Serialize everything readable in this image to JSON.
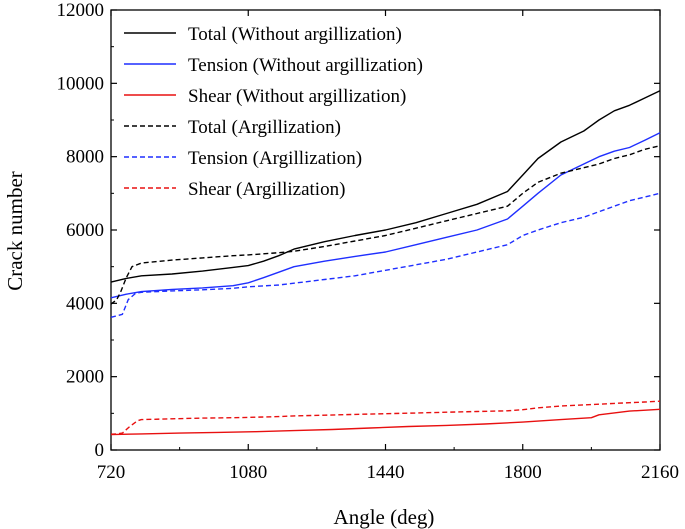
{
  "chart_data": {
    "type": "line",
    "xlabel": "Angle (deg)",
    "ylabel": "Crack number",
    "xlim": [
      720,
      2160
    ],
    "ylim": [
      0,
      12000
    ],
    "xticks": [
      720,
      1080,
      1440,
      1800,
      2160
    ],
    "yticks": [
      0,
      2000,
      4000,
      6000,
      8000,
      10000,
      12000
    ],
    "grid": false,
    "legend_position": "top-left",
    "series": [
      {
        "name": "Total (Without argillization)",
        "color": "#000000",
        "dash": "solid",
        "x": [
          720,
          760,
          800,
          880,
          960,
          1040,
          1080,
          1120,
          1160,
          1200,
          1280,
          1360,
          1440,
          1520,
          1600,
          1680,
          1760,
          1800,
          1840,
          1900,
          1960,
          2000,
          2040,
          2080,
          2120,
          2160
        ],
        "y": [
          4580,
          4680,
          4750,
          4800,
          4880,
          4980,
          5030,
          5150,
          5300,
          5480,
          5680,
          5850,
          6000,
          6200,
          6450,
          6700,
          7050,
          7500,
          7950,
          8400,
          8700,
          9000,
          9250,
          9400,
          9600,
          9800
        ]
      },
      {
        "name": "Tension (Without argillization)",
        "color": "#1f2fff",
        "dash": "solid",
        "x": [
          720,
          760,
          800,
          880,
          960,
          1040,
          1080,
          1120,
          1160,
          1200,
          1280,
          1360,
          1440,
          1520,
          1600,
          1680,
          1760,
          1800,
          1840,
          1900,
          1960,
          2000,
          2040,
          2080,
          2120,
          2160
        ],
        "y": [
          4150,
          4250,
          4320,
          4380,
          4420,
          4480,
          4560,
          4700,
          4850,
          5000,
          5150,
          5280,
          5400,
          5600,
          5800,
          6000,
          6300,
          6650,
          7000,
          7500,
          7800,
          8000,
          8150,
          8250,
          8450,
          8650
        ]
      },
      {
        "name": "Shear (Without argillization)",
        "color": "#e81010",
        "dash": "solid",
        "x": [
          720,
          800,
          900,
          1000,
          1100,
          1200,
          1300,
          1400,
          1500,
          1600,
          1700,
          1800,
          1900,
          1980,
          2000,
          2080,
          2160
        ],
        "y": [
          420,
          440,
          460,
          480,
          500,
          530,
          560,
          600,
          640,
          670,
          710,
          760,
          830,
          880,
          960,
          1060,
          1110
        ]
      },
      {
        "name": "Total (Argillization)",
        "color": "#000000",
        "dash": "dashed",
        "x": [
          720,
          735,
          745,
          760,
          775,
          800,
          880,
          960,
          1040,
          1080,
          1160,
          1200,
          1280,
          1360,
          1440,
          1520,
          1600,
          1680,
          1760,
          1800,
          1840,
          1900,
          1960,
          2000,
          2040,
          2080,
          2120,
          2160
        ],
        "y": [
          3980,
          4100,
          4300,
          4700,
          5000,
          5100,
          5180,
          5240,
          5300,
          5320,
          5380,
          5420,
          5550,
          5700,
          5850,
          6050,
          6250,
          6450,
          6650,
          7000,
          7300,
          7550,
          7700,
          7800,
          7950,
          8050,
          8200,
          8300
        ]
      },
      {
        "name": "Tension (Argillization)",
        "color": "#1f2fff",
        "dash": "dashed",
        "x": [
          720,
          750,
          765,
          785,
          800,
          880,
          960,
          1040,
          1080,
          1160,
          1200,
          1280,
          1360,
          1440,
          1520,
          1600,
          1680,
          1760,
          1800,
          1840,
          1900,
          1960,
          2000,
          2040,
          2080,
          2120,
          2160
        ],
        "y": [
          3620,
          3700,
          4100,
          4280,
          4300,
          4340,
          4370,
          4410,
          4450,
          4500,
          4550,
          4650,
          4750,
          4900,
          5050,
          5200,
          5400,
          5600,
          5850,
          6000,
          6200,
          6350,
          6500,
          6650,
          6800,
          6900,
          7000
        ]
      },
      {
        "name": "Shear (Argillization)",
        "color": "#e81010",
        "dash": "dashed",
        "x": [
          720,
          735,
          750,
          770,
          790,
          800,
          880,
          960,
          1040,
          1080,
          1160,
          1200,
          1280,
          1360,
          1440,
          1520,
          1600,
          1680,
          1760,
          1800,
          1840,
          1900,
          1960,
          2000,
          2040,
          2080,
          2120,
          2160
        ],
        "y": [
          430,
          440,
          460,
          650,
          800,
          830,
          850,
          870,
          880,
          890,
          910,
          930,
          950,
          970,
          990,
          1010,
          1030,
          1050,
          1070,
          1100,
          1150,
          1200,
          1230,
          1250,
          1270,
          1290,
          1310,
          1330
        ]
      }
    ]
  }
}
